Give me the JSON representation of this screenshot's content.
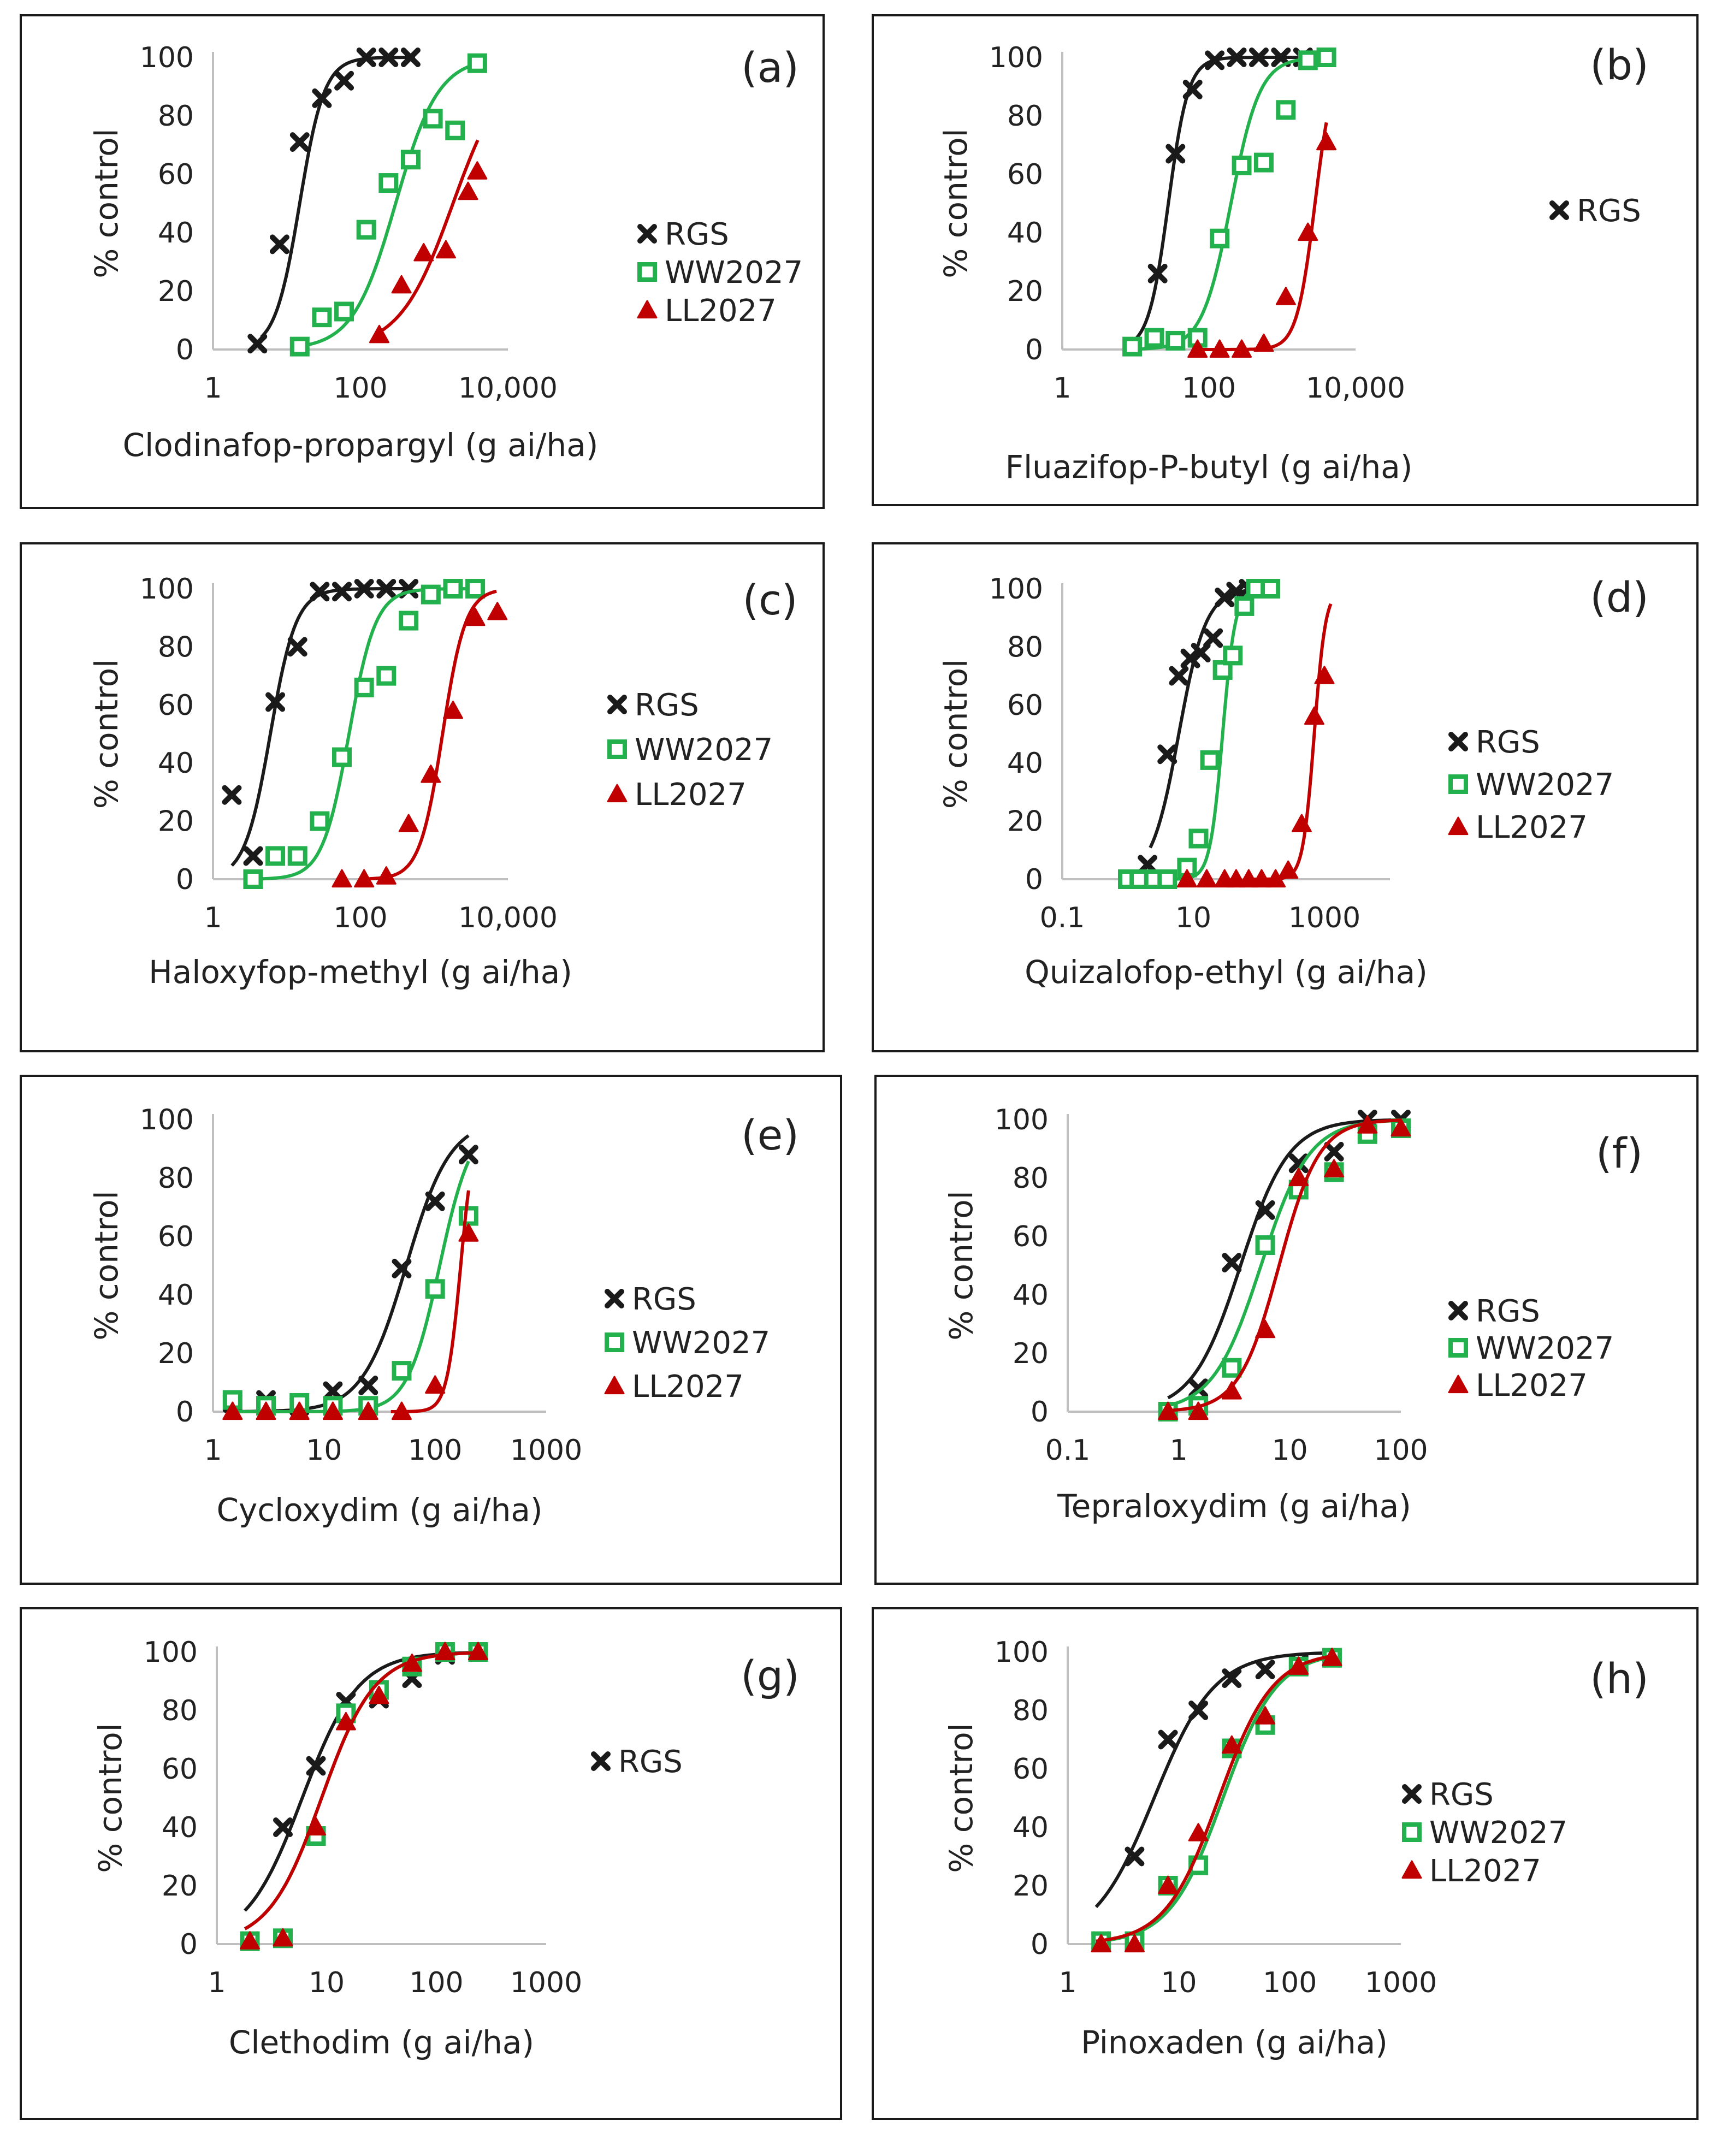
{
  "colors": {
    "RGS": "#1a1a1a",
    "WW2027": "#22b14c",
    "LL2027": "#c00000"
  },
  "markers": {
    "RGS": "cross",
    "WW2027": "square",
    "LL2027": "triangle"
  },
  "chart_data": [
    {
      "type": "scatter",
      "panel_label": "(a)",
      "xlabel": "Clodinafop-propargyl (g ai/ha)",
      "ylabel": "% control",
      "x_scale": "log",
      "xlim": [
        1,
        10000
      ],
      "ylim": [
        0,
        100
      ],
      "x_ticks": [
        1,
        100,
        10000
      ],
      "x_tick_labels": [
        "1",
        "100",
        "10,000"
      ],
      "y_ticks": [
        0,
        20,
        40,
        60,
        80,
        100
      ],
      "y_tick_labels": [
        "0",
        "20",
        "40",
        "60",
        "80",
        "100"
      ],
      "legend": [
        "RGS",
        "WW2027",
        "LL2027"
      ],
      "series": [
        {
          "name": "RGS",
          "x": [
            4,
            8,
            15,
            30,
            60,
            120,
            240,
            480
          ],
          "y": [
            2,
            36,
            71,
            86,
            92,
            100,
            100,
            100
          ],
          "curve_x": [
            4.5,
            550
          ],
          "ed50": 15,
          "slope": 2.6
        },
        {
          "name": "WW2027",
          "x": [
            15,
            30,
            60,
            120,
            240,
            480,
            960,
            1920,
            3840
          ],
          "y": [
            1,
            11,
            13,
            41,
            57,
            65,
            79,
            75,
            98
          ],
          "curve_x": [
            20,
            3900
          ],
          "ed50": 300,
          "slope": 1.5
        },
        {
          "name": "LL2027",
          "x": [
            180,
            360,
            720,
            1440,
            2880,
            3840
          ],
          "y": [
            5,
            22,
            33,
            34,
            54,
            61
          ],
          "curve_x": [
            180,
            3900
          ],
          "ed50": 1800,
          "slope": 1.2
        }
      ]
    },
    {
      "type": "scatter",
      "panel_label": "(b)",
      "xlabel": "Fluazifop-P-butyl (g ai/ha)",
      "ylabel": "% control",
      "x_scale": "log",
      "xlim": [
        1,
        10000
      ],
      "ylim": [
        0,
        100
      ],
      "x_ticks": [
        1,
        100,
        10000
      ],
      "x_tick_labels": [
        "1",
        "100",
        "10,000"
      ],
      "y_ticks": [
        0,
        20,
        40,
        60,
        80,
        100
      ],
      "y_tick_labels": [
        "0",
        "20",
        "40",
        "60",
        "80",
        "100"
      ],
      "legend": [
        "RGS"
      ],
      "series": [
        {
          "name": "RGS",
          "x": [
            20,
            35,
            60,
            120,
            240,
            480,
            960,
            1920
          ],
          "y": [
            26,
            67,
            89,
            99,
            100,
            100,
            100,
            100
          ],
          "curve_x": [
            9,
            2500
          ],
          "ed50": 28,
          "slope": 3.2
        },
        {
          "name": "WW2027",
          "x": [
            9,
            18,
            35,
            70,
            140,
            280,
            560,
            1120,
            2240,
            4000
          ],
          "y": [
            1,
            4,
            3,
            4,
            38,
            63,
            64,
            82,
            99,
            100
          ],
          "curve_x": [
            9,
            4000
          ],
          "ed50": 200,
          "slope": 2.2
        },
        {
          "name": "LL2027",
          "x": [
            70,
            140,
            280,
            560,
            1120,
            2240,
            4000
          ],
          "y": [
            0,
            0,
            0,
            2,
            18,
            40,
            71
          ],
          "curve_x": [
            70,
            4000
          ],
          "ed50": 2800,
          "slope": 3.5
        }
      ]
    },
    {
      "type": "scatter",
      "panel_label": "(c)",
      "xlabel": "Haloxyfop-methyl (g ai/ha)",
      "ylabel": "% control",
      "x_scale": "log",
      "xlim": [
        1,
        10000
      ],
      "ylim": [
        0,
        100
      ],
      "x_ticks": [
        1,
        100,
        10000
      ],
      "x_tick_labels": [
        "1",
        "100",
        "10,000"
      ],
      "y_ticks": [
        0,
        20,
        40,
        60,
        80,
        100
      ],
      "y_tick_labels": [
        "0",
        "20",
        "40",
        "60",
        "80",
        "100"
      ],
      "legend": [
        "RGS",
        "WW2027",
        "LL2027"
      ],
      "series": [
        {
          "name": "RGS",
          "x": [
            1.8,
            3.5,
            7,
            14,
            28,
            56,
            112,
            224,
            450
          ],
          "y": [
            29,
            8,
            61,
            80,
            99,
            99,
            100,
            100,
            100
          ],
          "curve_x": [
            1.8,
            460
          ],
          "ed50": 6,
          "slope": 2.5
        },
        {
          "name": "WW2027",
          "x": [
            3.5,
            7,
            14,
            28,
            56,
            112,
            224,
            450,
            900,
            1800,
            3600
          ],
          "y": [
            0,
            8,
            8,
            20,
            42,
            66,
            70,
            89,
            98,
            100,
            100
          ],
          "curve_x": [
            3.5,
            3600
          ],
          "ed50": 70,
          "slope": 2.4
        },
        {
          "name": "LL2027",
          "x": [
            56,
            112,
            224,
            450,
            900,
            1800,
            3600,
            7200
          ],
          "y": [
            0,
            0,
            1,
            19,
            36,
            58,
            90,
            92
          ],
          "curve_x": [
            110,
            7000
          ],
          "ed50": 1300,
          "slope": 2.8
        }
      ]
    },
    {
      "type": "scatter",
      "panel_label": "(d)",
      "xlabel": "Quizalofop-ethyl (g ai/ha)",
      "ylabel": "% control",
      "x_scale": "log",
      "xlim": [
        0.1,
        10000
      ],
      "ylim": [
        0,
        100
      ],
      "x_ticks": [
        0.1,
        10,
        1000
      ],
      "x_tick_labels": [
        "0.1",
        "10",
        "1000"
      ],
      "y_ticks": [
        0,
        20,
        40,
        60,
        80,
        100
      ],
      "y_tick_labels": [
        "0",
        "20",
        "40",
        "60",
        "80",
        "100"
      ],
      "legend": [
        "RGS",
        "WW2027",
        "LL2027"
      ],
      "series": [
        {
          "name": "RGS",
          "x": [
            2,
            4,
            6,
            9,
            13,
            20,
            30,
            45,
            70,
            110
          ],
          "y": [
            5,
            43,
            70,
            76,
            78,
            83,
            97,
            99,
            100,
            100
          ],
          "curve_x": [
            2.2,
            130
          ],
          "ed50": 6,
          "slope": 2.1
        },
        {
          "name": "WW2027",
          "x": [
            1,
            1.5,
            2.5,
            4,
            8,
            12,
            18,
            28,
            40,
            60,
            90,
            150
          ],
          "y": [
            0,
            0,
            0,
            0,
            4,
            14,
            41,
            72,
            77,
            94,
            100,
            100
          ],
          "curve_x": [
            5,
            150
          ],
          "ed50": 28,
          "slope": 4.5
        },
        {
          "name": "LL2027",
          "x": [
            8,
            16,
            30,
            45,
            70,
            110,
            180,
            280,
            450,
            700,
            1000
          ],
          "y": [
            0,
            0,
            0,
            0,
            0,
            0,
            0,
            3,
            19,
            56,
            70
          ],
          "curve_x": [
            70,
            1250
          ],
          "ed50": 700,
          "slope": 5
        }
      ]
    },
    {
      "type": "scatter",
      "panel_label": "(e)",
      "xlabel": "Cycloxydim (g ai/ha)",
      "ylabel": "% control",
      "x_scale": "log",
      "xlim": [
        1,
        1000
      ],
      "ylim": [
        0,
        100
      ],
      "x_ticks": [
        1,
        10,
        100,
        1000
      ],
      "x_tick_labels": [
        "1",
        "10",
        "100",
        "1000"
      ],
      "y_ticks": [
        0,
        20,
        40,
        60,
        80,
        100
      ],
      "y_tick_labels": [
        "0",
        "20",
        "40",
        "60",
        "80",
        "100"
      ],
      "legend": [
        "RGS",
        "WW2027",
        "LL2027"
      ],
      "series": [
        {
          "name": "RGS",
          "x": [
            1.5,
            3,
            6,
            12,
            25,
            50,
            100,
            200
          ],
          "y": [
            3,
            4,
            2,
            7,
            9,
            49,
            72,
            88
          ],
          "curve_x": [
            1.5,
            200
          ],
          "ed50": 55,
          "slope": 2.2
        },
        {
          "name": "WW2027",
          "x": [
            1.5,
            3,
            6,
            12,
            25,
            50,
            100,
            200
          ],
          "y": [
            4,
            2,
            3,
            2,
            2,
            14,
            42,
            67
          ],
          "curve_x": [
            1.5,
            200
          ],
          "ed50": 110,
          "slope": 3
        },
        {
          "name": "LL2027",
          "x": [
            1.5,
            3,
            6,
            12,
            25,
            50,
            100,
            200
          ],
          "y": [
            0,
            0,
            0,
            0,
            0,
            0,
            9,
            61
          ],
          "curve_x": [
            40,
            200
          ],
          "ed50": 170,
          "slope": 7
        }
      ]
    },
    {
      "type": "scatter",
      "panel_label": "(f)",
      "xlabel": "Tepraloxydim (g ai/ha)",
      "ylabel": "% control",
      "x_scale": "log",
      "xlim": [
        0.1,
        100
      ],
      "ylim": [
        0,
        100
      ],
      "x_ticks": [
        0.1,
        1,
        10,
        100
      ],
      "x_tick_labels": [
        "0.1",
        "1",
        "10",
        "100"
      ],
      "y_ticks": [
        0,
        20,
        40,
        60,
        80,
        100
      ],
      "y_tick_labels": [
        "0",
        "20",
        "40",
        "60",
        "80",
        "100"
      ],
      "legend": [
        "RGS",
        "WW2027",
        "LL2027"
      ],
      "series": [
        {
          "name": "RGS",
          "x": [
            0.8,
            1.5,
            3,
            6,
            12,
            25,
            50,
            100
          ],
          "y": [
            0,
            8,
            51,
            69,
            85,
            89,
            100,
            100
          ],
          "curve_x": [
            0.8,
            100
          ],
          "ed50": 3.6,
          "slope": 2
        },
        {
          "name": "WW2027",
          "x": [
            0.8,
            1.5,
            3,
            6,
            12,
            25,
            50,
            100
          ],
          "y": [
            0,
            2,
            15,
            57,
            76,
            82,
            95,
            97
          ],
          "curve_x": [
            0.8,
            100
          ],
          "ed50": 5.5,
          "slope": 2
        },
        {
          "name": "LL2027",
          "x": [
            0.8,
            1.5,
            3,
            6,
            12,
            25,
            50,
            100
          ],
          "y": [
            0,
            0,
            7,
            28,
            80,
            83,
            98,
            97
          ],
          "curve_x": [
            0.8,
            100
          ],
          "ed50": 8,
          "slope": 2.4
        }
      ]
    },
    {
      "type": "scatter",
      "panel_label": "(g)",
      "xlabel": "Clethodim (g ai/ha)",
      "ylabel": "% control",
      "x_scale": "log",
      "xlim": [
        1,
        1000
      ],
      "ylim": [
        0,
        100
      ],
      "x_ticks": [
        1,
        10,
        100,
        1000
      ],
      "x_tick_labels": [
        "1",
        "10",
        "100",
        "1000"
      ],
      "y_ticks": [
        0,
        20,
        40,
        60,
        80,
        100
      ],
      "y_tick_labels": [
        "0",
        "20",
        "40",
        "60",
        "80",
        "100"
      ],
      "legend": [
        "RGS"
      ],
      "series": [
        {
          "name": "RGS",
          "x": [
            2,
            4,
            8,
            15,
            30,
            60,
            120,
            240
          ],
          "y": [
            1,
            40,
            61,
            83,
            84,
            91,
            99,
            100
          ],
          "curve_x": [
            1.8,
            240
          ],
          "ed50": 6,
          "slope": 1.7
        },
        {
          "name": "WW2027",
          "x": [
            2,
            4,
            8,
            15,
            30,
            60,
            120,
            240
          ],
          "y": [
            1,
            2,
            37,
            79,
            87,
            95,
            100,
            100
          ],
          "curve_x": [
            1.8,
            240
          ],
          "ed50": 9,
          "slope": 1.8
        },
        {
          "name": "LL2027",
          "x": [
            2,
            4,
            8,
            15,
            30,
            60,
            120,
            240
          ],
          "y": [
            1,
            2,
            40,
            76,
            85,
            96,
            100,
            100
          ],
          "curve_x": [
            1.8,
            240
          ],
          "ed50": 9,
          "slope": 1.8
        }
      ]
    },
    {
      "type": "scatter",
      "panel_label": "(h)",
      "xlabel": "Pinoxaden (g ai/ha)",
      "ylabel": "% control",
      "x_scale": "log",
      "xlim": [
        1,
        1000
      ],
      "ylim": [
        0,
        100
      ],
      "x_ticks": [
        1,
        10,
        100,
        1000
      ],
      "x_tick_labels": [
        "1",
        "10",
        "100",
        "1000"
      ],
      "y_ticks": [
        0,
        20,
        40,
        60,
        80,
        100
      ],
      "y_tick_labels": [
        "0",
        "20",
        "40",
        "60",
        "80",
        "100"
      ],
      "legend": [
        "RGS",
        "WW2027",
        "LL2027"
      ],
      "series": [
        {
          "name": "RGS",
          "x": [
            2,
            4,
            8,
            15,
            30,
            60,
            120,
            240
          ],
          "y": [
            1,
            30,
            70,
            80,
            91,
            94,
            96,
            98
          ],
          "curve_x": [
            1.8,
            240
          ],
          "ed50": 6,
          "slope": 1.6
        },
        {
          "name": "WW2027",
          "x": [
            2,
            4,
            8,
            15,
            30,
            60,
            120,
            240
          ],
          "y": [
            1,
            1,
            20,
            27,
            67,
            75,
            95,
            98
          ],
          "curve_x": [
            1.8,
            240
          ],
          "ed50": 25,
          "slope": 1.8
        },
        {
          "name": "LL2027",
          "x": [
            2,
            4,
            8,
            15,
            30,
            60,
            120,
            240
          ],
          "y": [
            0,
            0,
            20,
            38,
            68,
            78,
            95,
            98
          ],
          "curve_x": [
            1.8,
            240
          ],
          "ed50": 23,
          "slope": 1.8
        }
      ]
    }
  ]
}
